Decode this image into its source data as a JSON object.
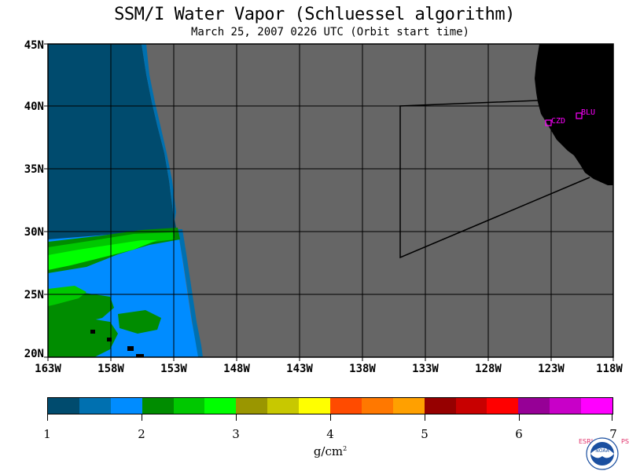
{
  "title": "SSM/I Water Vapor (Schluessel algorithm)",
  "subtitle": "March 25, 2007  0226 UTC  (Orbit start time)",
  "lat_labels": [
    "45N",
    "40N",
    "35N",
    "30N",
    "25N",
    "20N"
  ],
  "lon_labels": [
    "163W",
    "158W",
    "153W",
    "148W",
    "143W",
    "138W",
    "133W",
    "128W",
    "123W",
    "118W"
  ],
  "stations": [
    {
      "id": "CZD",
      "lon": -123.0,
      "lat": 38.6
    },
    {
      "id": "BLU",
      "lon": -120.8,
      "lat": 39.3
    }
  ],
  "colorbar": {
    "colors": [
      "#004b6e",
      "#0070b0",
      "#008cff",
      "#008c00",
      "#00c800",
      "#00ff00",
      "#9a9600",
      "#c8c800",
      "#ffff00",
      "#ff4b00",
      "#ff7800",
      "#ffa000",
      "#960000",
      "#c80000",
      "#ff0000",
      "#960096",
      "#c800c8",
      "#ff00ff"
    ],
    "tick_labels": [
      "1",
      "2",
      "3",
      "4",
      "5",
      "6",
      "7"
    ],
    "units": "g/cm",
    "units_sup": "2"
  },
  "logo": {
    "text": "NOAA",
    "left_letters": "ESRL",
    "right_letters": "PSD"
  },
  "colors": {
    "no_data": "#666666",
    "land": "#000000",
    "station": "#ff00ff",
    "grid": "#000000"
  }
}
